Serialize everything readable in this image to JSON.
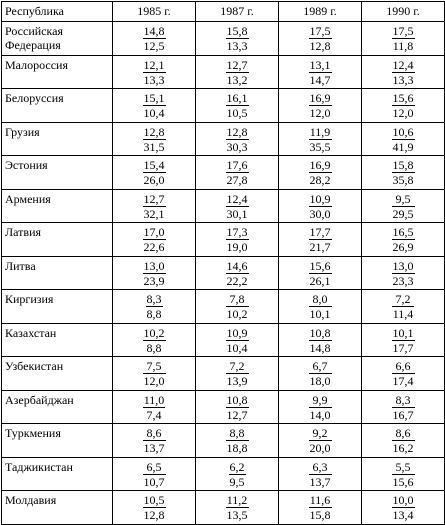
{
  "header": [
    "Республика",
    "1985 г.",
    "1987 г.",
    "1989 г.",
    "1990 г."
  ],
  "rows": [
    {
      "name": "Российская Федерация",
      "values": [
        [
          "14,8",
          "12,5"
        ],
        [
          "15,8",
          "13,3"
        ],
        [
          "17,5",
          "12,8"
        ],
        [
          "17,5",
          "11,8"
        ]
      ]
    },
    {
      "name": "Малороссия",
      "values": [
        [
          "12,1",
          "13,3"
        ],
        [
          "12,7",
          "13,2"
        ],
        [
          "13,1",
          "14,7"
        ],
        [
          "12,4",
          "13,3"
        ]
      ]
    },
    {
      "name": "Белоруссия",
      "values": [
        [
          "15,1",
          "10,4"
        ],
        [
          "16,1",
          "10,5"
        ],
        [
          "16,9",
          "12,0"
        ],
        [
          "15,6",
          "12,0"
        ]
      ]
    },
    {
      "name": "Грузия",
      "values": [
        [
          "12,8",
          "31,5"
        ],
        [
          "12,8",
          "30,3"
        ],
        [
          "11,9",
          "35,5"
        ],
        [
          "10,6",
          "41,9"
        ]
      ]
    },
    {
      "name": "Эстония",
      "values": [
        [
          "15,4",
          "26,0"
        ],
        [
          "17,6",
          "27,8"
        ],
        [
          "16,9",
          "28,2"
        ],
        [
          "15,8",
          "35,8"
        ]
      ]
    },
    {
      "name": "Армения",
      "values": [
        [
          "12,7",
          "32,1"
        ],
        [
          "12,4",
          "30,1"
        ],
        [
          "10,9",
          "30,0"
        ],
        [
          "9,5",
          "29,5"
        ]
      ]
    },
    {
      "name": "Латвия",
      "values": [
        [
          "17,0",
          "22,6"
        ],
        [
          "17,3",
          "19,0"
        ],
        [
          "17,7",
          "21,7"
        ],
        [
          "16,5",
          "26,9"
        ]
      ]
    },
    {
      "name": "Литва",
      "values": [
        [
          "13,0",
          "23,9"
        ],
        [
          "14,6",
          "22,2"
        ],
        [
          "15,6",
          "26,1"
        ],
        [
          "13,0",
          "23,3"
        ]
      ]
    },
    {
      "name": "Киргизия",
      "values": [
        [
          "8,3",
          "8,8"
        ],
        [
          "7,8",
          "10,2"
        ],
        [
          "8,0",
          "10,1"
        ],
        [
          "7,2",
          "11,4"
        ]
      ]
    },
    {
      "name": "Казахстан",
      "values": [
        [
          "10,2",
          "8,8"
        ],
        [
          "10,9",
          "10,4"
        ],
        [
          "10,8",
          "14,8"
        ],
        [
          "10,1",
          "17,7"
        ]
      ]
    },
    {
      "name": "Узбекистан",
      "values": [
        [
          "7,5",
          "12,0"
        ],
        [
          "7,2",
          "13,9"
        ],
        [
          "6,7",
          "18,0"
        ],
        [
          "6,6",
          "17,4"
        ]
      ]
    },
    {
      "name": "Азербайджан",
      "values": [
        [
          "11,0",
          "7,4"
        ],
        [
          "10,8",
          "12,7"
        ],
        [
          "9,9",
          "14,0"
        ],
        [
          "8,3",
          "16,7"
        ]
      ]
    },
    {
      "name": "Туркмения",
      "values": [
        [
          "8,6",
          "13,7"
        ],
        [
          "8,8",
          "18,8"
        ],
        [
          "9,2",
          "20,0"
        ],
        [
          "8,6",
          "16,2"
        ]
      ]
    },
    {
      "name": "Таджикистан",
      "values": [
        [
          "6,5",
          "10,7"
        ],
        [
          "6,2",
          "9,5"
        ],
        [
          "6,3",
          "13,7"
        ],
        [
          "5,5",
          "15,6"
        ]
      ]
    },
    {
      "name": "Молдавия",
      "values": [
        [
          "10,5",
          "12,8"
        ],
        [
          "11,2",
          "13,5"
        ],
        [
          "11,6",
          "15,8"
        ],
        [
          "10,0",
          "13,4"
        ]
      ]
    }
  ]
}
